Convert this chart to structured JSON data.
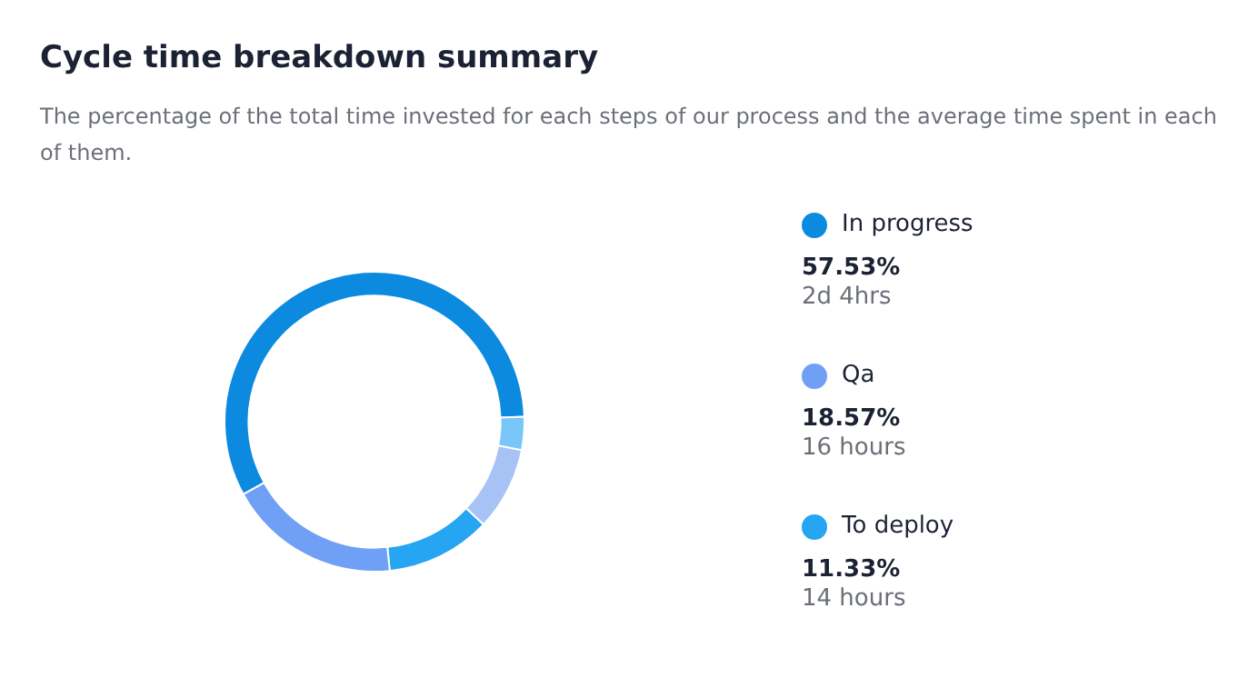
{
  "chart_data": {
    "type": "donut",
    "title": "Cycle time breakdown summary",
    "subtitle": "The percentage of the total time invested for each steps of our process and the average time spent in each of them.",
    "categories": [
      "In progress",
      null,
      null,
      "To deploy",
      "Qa"
    ],
    "values": [
      57.53,
      3.57,
      9.0,
      11.33,
      18.57
    ],
    "colors": [
      "#0b8ae0",
      "#79c6f8",
      "#a7c3f5",
      "#25a5f2",
      "#6fa0f5"
    ],
    "value_labels": [
      "57.53%",
      null,
      null,
      "11.33%",
      "18.57%"
    ],
    "annotations": [
      "2d 4hrs",
      "16 hours",
      "14 hours"
    ],
    "legend": "right"
  }
}
